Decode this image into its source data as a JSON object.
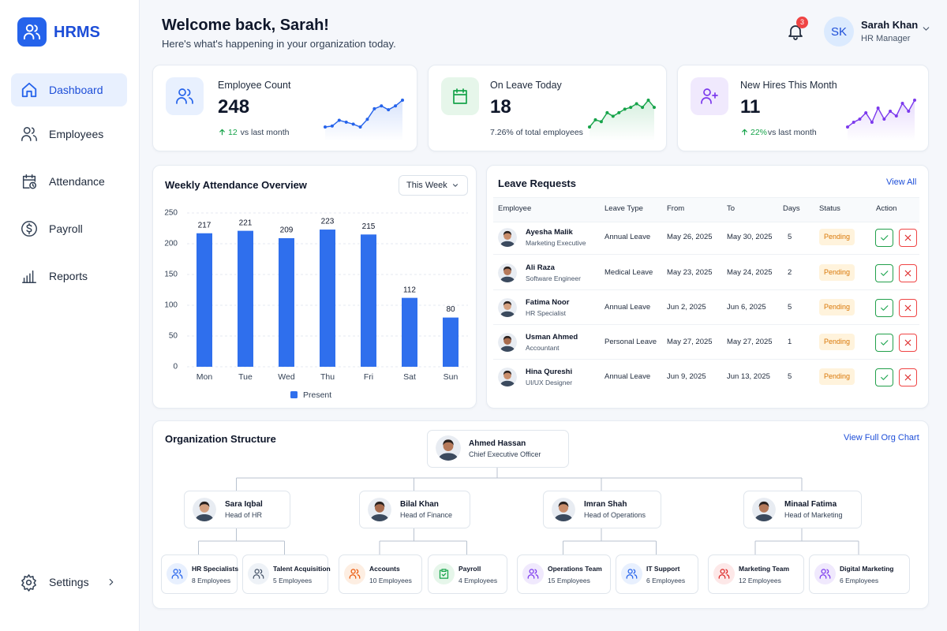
{
  "sidebar": {
    "brand": "HRMS",
    "nav": [
      "Dashboard",
      "Employees",
      "Attendance",
      "Payroll",
      "Reports"
    ],
    "settings": "Settings"
  },
  "header": {
    "title": "Welcome back, Sarah!",
    "subtitle": "Here's what's happening in your organization today.",
    "notifications": 3,
    "user": {
      "initials": "SK",
      "name": "Sarah Khan",
      "role": "HR Manager"
    }
  },
  "stats": [
    {
      "label": "Employee Count",
      "value": 248,
      "change": "12",
      "note": "vs last month",
      "trend": [
        45,
        46,
        52,
        50,
        48,
        45,
        53,
        64,
        67,
        63,
        67,
        73
      ]
    },
    {
      "label": "On Leave Today",
      "value": 18,
      "note": "7.26% of total employees",
      "trend": [
        30,
        34,
        33,
        38,
        36,
        38,
        40,
        41,
        43,
        41,
        45,
        41
      ]
    },
    {
      "label": "New Hires This Month",
      "value": 11,
      "change": "22%",
      "note": "vs last month",
      "trend": [
        20,
        23,
        25,
        29,
        23,
        32,
        25,
        30,
        27,
        35,
        30,
        37
      ]
    }
  ],
  "chart_data": {
    "type": "bar",
    "title": "Weekly Attendance Overview",
    "filter": "This Week",
    "categories": [
      "Mon",
      "Tue",
      "Wed",
      "Thu",
      "Fri",
      "Sat",
      "Sun"
    ],
    "series": [
      {
        "name": "Present",
        "color": "#2f6fed",
        "values": [
          217,
          221,
          209,
          223,
          215,
          112,
          80
        ]
      }
    ],
    "ylim": [
      0,
      250
    ],
    "yticks": [
      0,
      50,
      100,
      150,
      200,
      250
    ],
    "grid": true,
    "legend": "bottom"
  },
  "leave_requests": {
    "title": "Leave Requests",
    "link": "View All",
    "columns": [
      "Employee",
      "Leave Type",
      "From",
      "To",
      "Days",
      "Status",
      "Action"
    ],
    "rows": [
      {
        "name": "Ayesha Malik",
        "role": "Marketing Executive",
        "type": "Annual Leave",
        "from": "May 26, 2025",
        "to": "May 30, 2025",
        "days": 5,
        "status": "Pending"
      },
      {
        "name": "Ali Raza",
        "role": "Software Engineer",
        "type": "Medical Leave",
        "from": "May 23, 2025",
        "to": "May 24, 2025",
        "days": 2,
        "status": "Pending"
      },
      {
        "name": "Fatima Noor",
        "role": "HR Specialist",
        "type": "Annual Leave",
        "from": "Jun 2, 2025",
        "to": "Jun 6, 2025",
        "days": 5,
        "status": "Pending"
      },
      {
        "name": "Usman Ahmed",
        "role": "Accountant",
        "type": "Personal Leave",
        "from": "May 27, 2025",
        "to": "May 27, 2025",
        "days": 1,
        "status": "Pending"
      },
      {
        "name": "Hina Qureshi",
        "role": "UI/UX Designer",
        "type": "Annual Leave",
        "from": "Jun 9, 2025",
        "to": "Jun 13, 2025",
        "days": 5,
        "status": "Pending"
      }
    ]
  },
  "org": {
    "title": "Organization Structure",
    "link": "View Full Org Chart",
    "ceo": {
      "name": "Ahmed Hassan",
      "role": "Chief Executive Officer"
    },
    "heads": [
      {
        "name": "Sara Iqbal",
        "role": "Head of HR",
        "teams": [
          {
            "name": "HR Specialists",
            "size": "8 Employees"
          },
          {
            "name": "Talent Acquisition",
            "size": "5 Employees"
          }
        ]
      },
      {
        "name": "Bilal Khan",
        "role": "Head of Finance",
        "teams": [
          {
            "name": "Accounts",
            "size": "10 Employees"
          },
          {
            "name": "Payroll",
            "size": "4 Employees"
          }
        ]
      },
      {
        "name": "Imran Shah",
        "role": "Head of Operations",
        "teams": [
          {
            "name": "Operations Team",
            "size": "15 Employees"
          },
          {
            "name": "IT Support",
            "size": "6 Employees"
          }
        ]
      },
      {
        "name": "Minaal Fatima",
        "role": "Head of Marketing",
        "teams": [
          {
            "name": "Marketing Team",
            "size": "12 Employees"
          },
          {
            "name": "Digital Marketing",
            "size": "6 Employees"
          }
        ]
      }
    ]
  }
}
